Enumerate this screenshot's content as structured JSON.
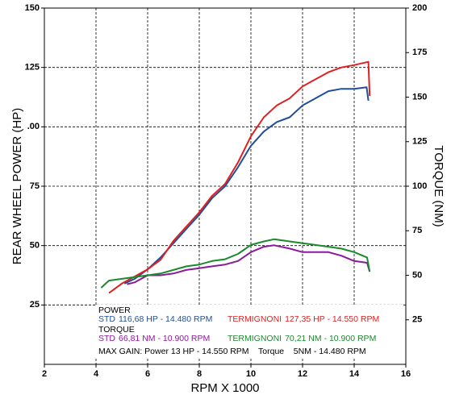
{
  "chart_data": {
    "type": "line",
    "xlabel": "RPM X 1000",
    "ylabel": "REAR WHEEL POWER (HP)",
    "y2label": "TORQUE (NM)",
    "xlim": [
      2,
      16
    ],
    "xticks": [
      2,
      4,
      6,
      8,
      10,
      12,
      14,
      16
    ],
    "ylim": [
      0,
      150
    ],
    "yticks": [
      25,
      50,
      75,
      {
        "value": 100,
        "label": ".00"
      },
      125,
      150
    ],
    "y2lim": [
      0,
      200
    ],
    "y2ticks": [
      25,
      50,
      75,
      100,
      125,
      150,
      175,
      200
    ],
    "grid": true,
    "legend_groups": [
      "POWER",
      "TORQUE"
    ],
    "max_gain": "MAX GAIN: Power 13 HP - 14.550 RPM    Torque    5NM - 14.480 RPM",
    "series": [
      {
        "name": "STD",
        "note": "116,68 HP - 14.480 RPM",
        "group": 0,
        "color": "#1f4e9a",
        "x": [
          5.1,
          5.5,
          6,
          6.5,
          7,
          7.5,
          8,
          8.5,
          9,
          9.5,
          10,
          10.5,
          11,
          11.5,
          12,
          12.5,
          13,
          13.5,
          14,
          14.48,
          14.55
        ],
        "values": [
          34,
          36,
          40,
          45,
          51,
          57,
          63,
          70,
          75,
          83,
          92,
          98,
          102,
          104,
          109,
          112,
          115,
          116,
          116,
          116.68,
          111
        ]
      },
      {
        "name": "TERMIGNONI",
        "note": "127,35 HP - 14.550 RPM",
        "group": 0,
        "color": "#e02020",
        "x": [
          4.5,
          5,
          5.5,
          6,
          6.5,
          7,
          7.5,
          8,
          8.5,
          9,
          9.5,
          10,
          10.5,
          11,
          11.5,
          12,
          12.5,
          13,
          13.5,
          14,
          14.55,
          14.6
        ],
        "values": [
          30,
          34,
          37,
          40,
          44,
          52,
          58,
          64,
          71,
          76,
          85,
          96,
          104,
          109,
          112,
          117,
          120,
          123,
          125,
          126,
          127.35,
          113
        ]
      },
      {
        "name": "STD",
        "note": "66,81 NM - 10.900 RPM",
        "group": 1,
        "color": "#8b1a9a",
        "axis": "y2",
        "x": [
          5.2,
          5.5,
          6,
          6.5,
          7,
          7.5,
          8,
          8.5,
          9,
          9.5,
          10,
          10.5,
          10.9,
          11.5,
          12,
          12.5,
          13,
          13.5,
          14,
          14.5,
          14.6
        ],
        "values": [
          45,
          46,
          50,
          50,
          51,
          53,
          54,
          55,
          56,
          58,
          63,
          66,
          66.81,
          65,
          63,
          63,
          63,
          61,
          58,
          57,
          52
        ]
      },
      {
        "name": "TERMIGNONI",
        "note": "70,21 NM - 10.900 RPM",
        "group": 1,
        "color": "#1a8a2a",
        "axis": "y2",
        "x": [
          4.2,
          4.5,
          5,
          5.5,
          6,
          6.5,
          7,
          7.5,
          8,
          8.5,
          9,
          9.5,
          10,
          10.5,
          10.9,
          11.5,
          12,
          12.5,
          13,
          13.5,
          14,
          14.5,
          14.6
        ],
        "values": [
          43,
          47,
          48,
          49,
          50,
          51,
          53,
          55,
          56,
          58,
          59,
          62,
          67,
          69,
          70.21,
          69,
          68,
          67,
          66,
          65,
          63,
          60,
          52
        ]
      }
    ]
  }
}
